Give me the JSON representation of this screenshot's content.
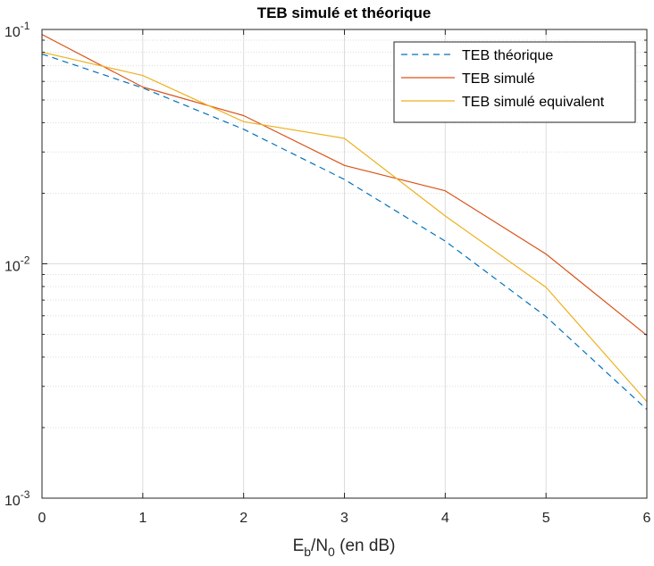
{
  "chart_data": {
    "type": "line",
    "title": "TEB simulé et théorique",
    "xlabel": {
      "base": "E",
      "sub1": "b",
      "mid": "/N",
      "sub2": "0",
      "rest": " (en dB)"
    },
    "ylabel": "",
    "xlim": [
      0,
      6
    ],
    "ylim": [
      0.001,
      0.1
    ],
    "yscale": "log",
    "grid": true,
    "minor_grid": true,
    "legend_position": "top-right",
    "x_ticks": [
      "0",
      "1",
      "2",
      "3",
      "4",
      "5",
      "6"
    ],
    "y_ticks": [
      {
        "value": 0.1,
        "base": "10",
        "exp": "-1"
      },
      {
        "value": 0.01,
        "base": "10",
        "exp": "-2"
      },
      {
        "value": 0.001,
        "base": "10",
        "exp": "-3"
      }
    ],
    "x": [
      0,
      1,
      2,
      3,
      4,
      5,
      6
    ],
    "series": [
      {
        "name": "TEB théorique",
        "color": "#0072bd",
        "style": "dashed",
        "values": [
          0.0786,
          0.0563,
          0.0375,
          0.0229,
          0.0125,
          0.00595,
          0.00239
        ]
      },
      {
        "name": "TEB simulé",
        "color": "#d95319",
        "style": "solid",
        "values": [
          0.0952,
          0.0568,
          0.0429,
          0.0263,
          0.0205,
          0.011,
          0.00495
        ]
      },
      {
        "name": "TEB simulé equivalent",
        "color": "#edb120",
        "style": "solid",
        "values": [
          0.08,
          0.0636,
          0.0404,
          0.0343,
          0.016,
          0.00793,
          0.00258
        ]
      }
    ]
  }
}
